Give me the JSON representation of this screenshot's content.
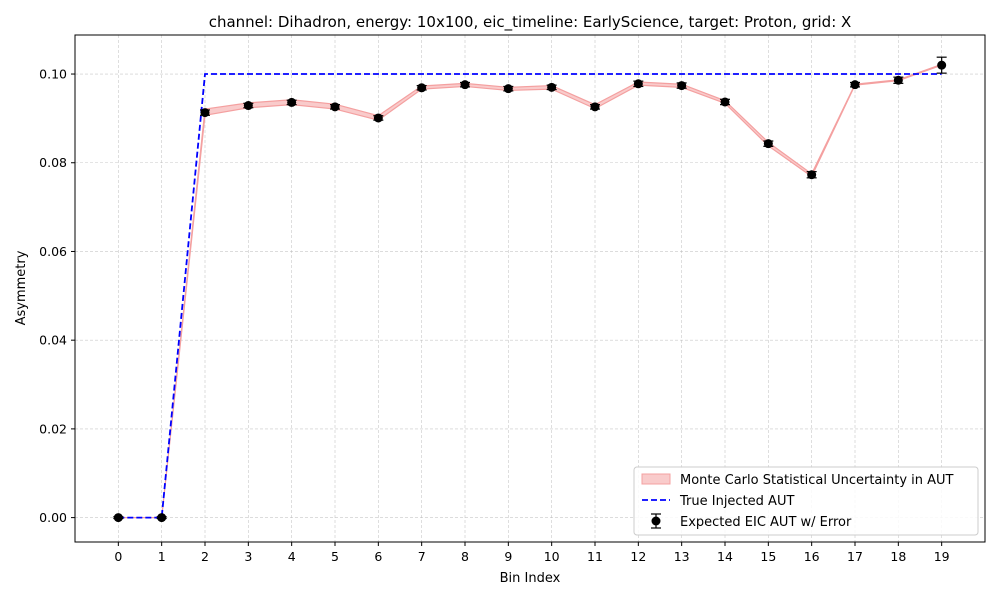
{
  "chart_data": {
    "type": "line",
    "title": "channel: Dihadron, energy: 10x100, eic_timeline: EarlyScience, target: Proton, grid: X",
    "xlabel": "Bin Index",
    "ylabel": "Asymmetry",
    "xlim": [
      -1,
      20
    ],
    "ylim": [
      -0.0055,
      0.1088
    ],
    "x_ticks": [
      0,
      1,
      2,
      3,
      4,
      5,
      6,
      7,
      8,
      9,
      10,
      11,
      12,
      13,
      14,
      15,
      16,
      17,
      18,
      19
    ],
    "y_ticks": [
      0.0,
      0.02,
      0.04,
      0.06,
      0.08,
      0.1
    ],
    "y_tick_labels": [
      "0.00",
      "0.02",
      "0.04",
      "0.06",
      "0.08",
      "0.10"
    ],
    "grid": true,
    "legend_position": "lower-right",
    "legend": [
      {
        "label": "Monte Carlo Statistical Uncertainty in AUT",
        "kind": "band"
      },
      {
        "label": "True Injected AUT",
        "kind": "dashed-line"
      },
      {
        "label": "Expected EIC AUT w/ Error",
        "kind": "errorbar"
      }
    ],
    "x": [
      0,
      1,
      2,
      3,
      4,
      5,
      6,
      7,
      8,
      9,
      10,
      11,
      12,
      13,
      14,
      15,
      16,
      17,
      18,
      19
    ],
    "series": [
      {
        "name": "Monte Carlo Statistical Uncertainty in AUT",
        "kind": "band",
        "color": "#f4a0a0",
        "lower": [
          0.0,
          0.0,
          0.0907,
          0.0924,
          0.0931,
          0.0921,
          0.0896,
          0.0966,
          0.0972,
          0.0963,
          0.0966,
          0.0922,
          0.0975,
          0.097,
          0.0934,
          0.0838,
          0.0769,
          0.0975,
          0.0985,
          0.102
        ],
        "upper": [
          0.0,
          0.0,
          0.0921,
          0.0935,
          0.0942,
          0.0932,
          0.0906,
          0.0973,
          0.0979,
          0.097,
          0.0974,
          0.0931,
          0.0982,
          0.0977,
          0.094,
          0.0846,
          0.0775,
          0.0977,
          0.0987,
          0.1022
        ]
      },
      {
        "name": "True Injected AUT",
        "kind": "dashed-line",
        "color": "#0000ff",
        "values": [
          0.0,
          0.0,
          0.1,
          0.1,
          0.1,
          0.1,
          0.1,
          0.1,
          0.1,
          0.1,
          0.1,
          0.1,
          0.1,
          0.1,
          0.1,
          0.1,
          0.1,
          0.1,
          0.1,
          0.1
        ]
      },
      {
        "name": "Expected EIC AUT w/ Error",
        "kind": "errorbar",
        "color": "#000000",
        "values": [
          0.0,
          0.0,
          0.0913,
          0.0929,
          0.0936,
          0.0926,
          0.0901,
          0.0969,
          0.0976,
          0.0967,
          0.097,
          0.0926,
          0.0978,
          0.0974,
          0.0937,
          0.0843,
          0.0773,
          0.0976,
          0.0986,
          0.102
        ],
        "errors": [
          0.0002,
          0.0002,
          0.0006,
          0.0005,
          0.0005,
          0.0005,
          0.0005,
          0.0005,
          0.0005,
          0.0005,
          0.0005,
          0.0005,
          0.0006,
          0.0006,
          0.0006,
          0.0006,
          0.0007,
          0.0005,
          0.0007,
          0.0018
        ]
      }
    ]
  }
}
